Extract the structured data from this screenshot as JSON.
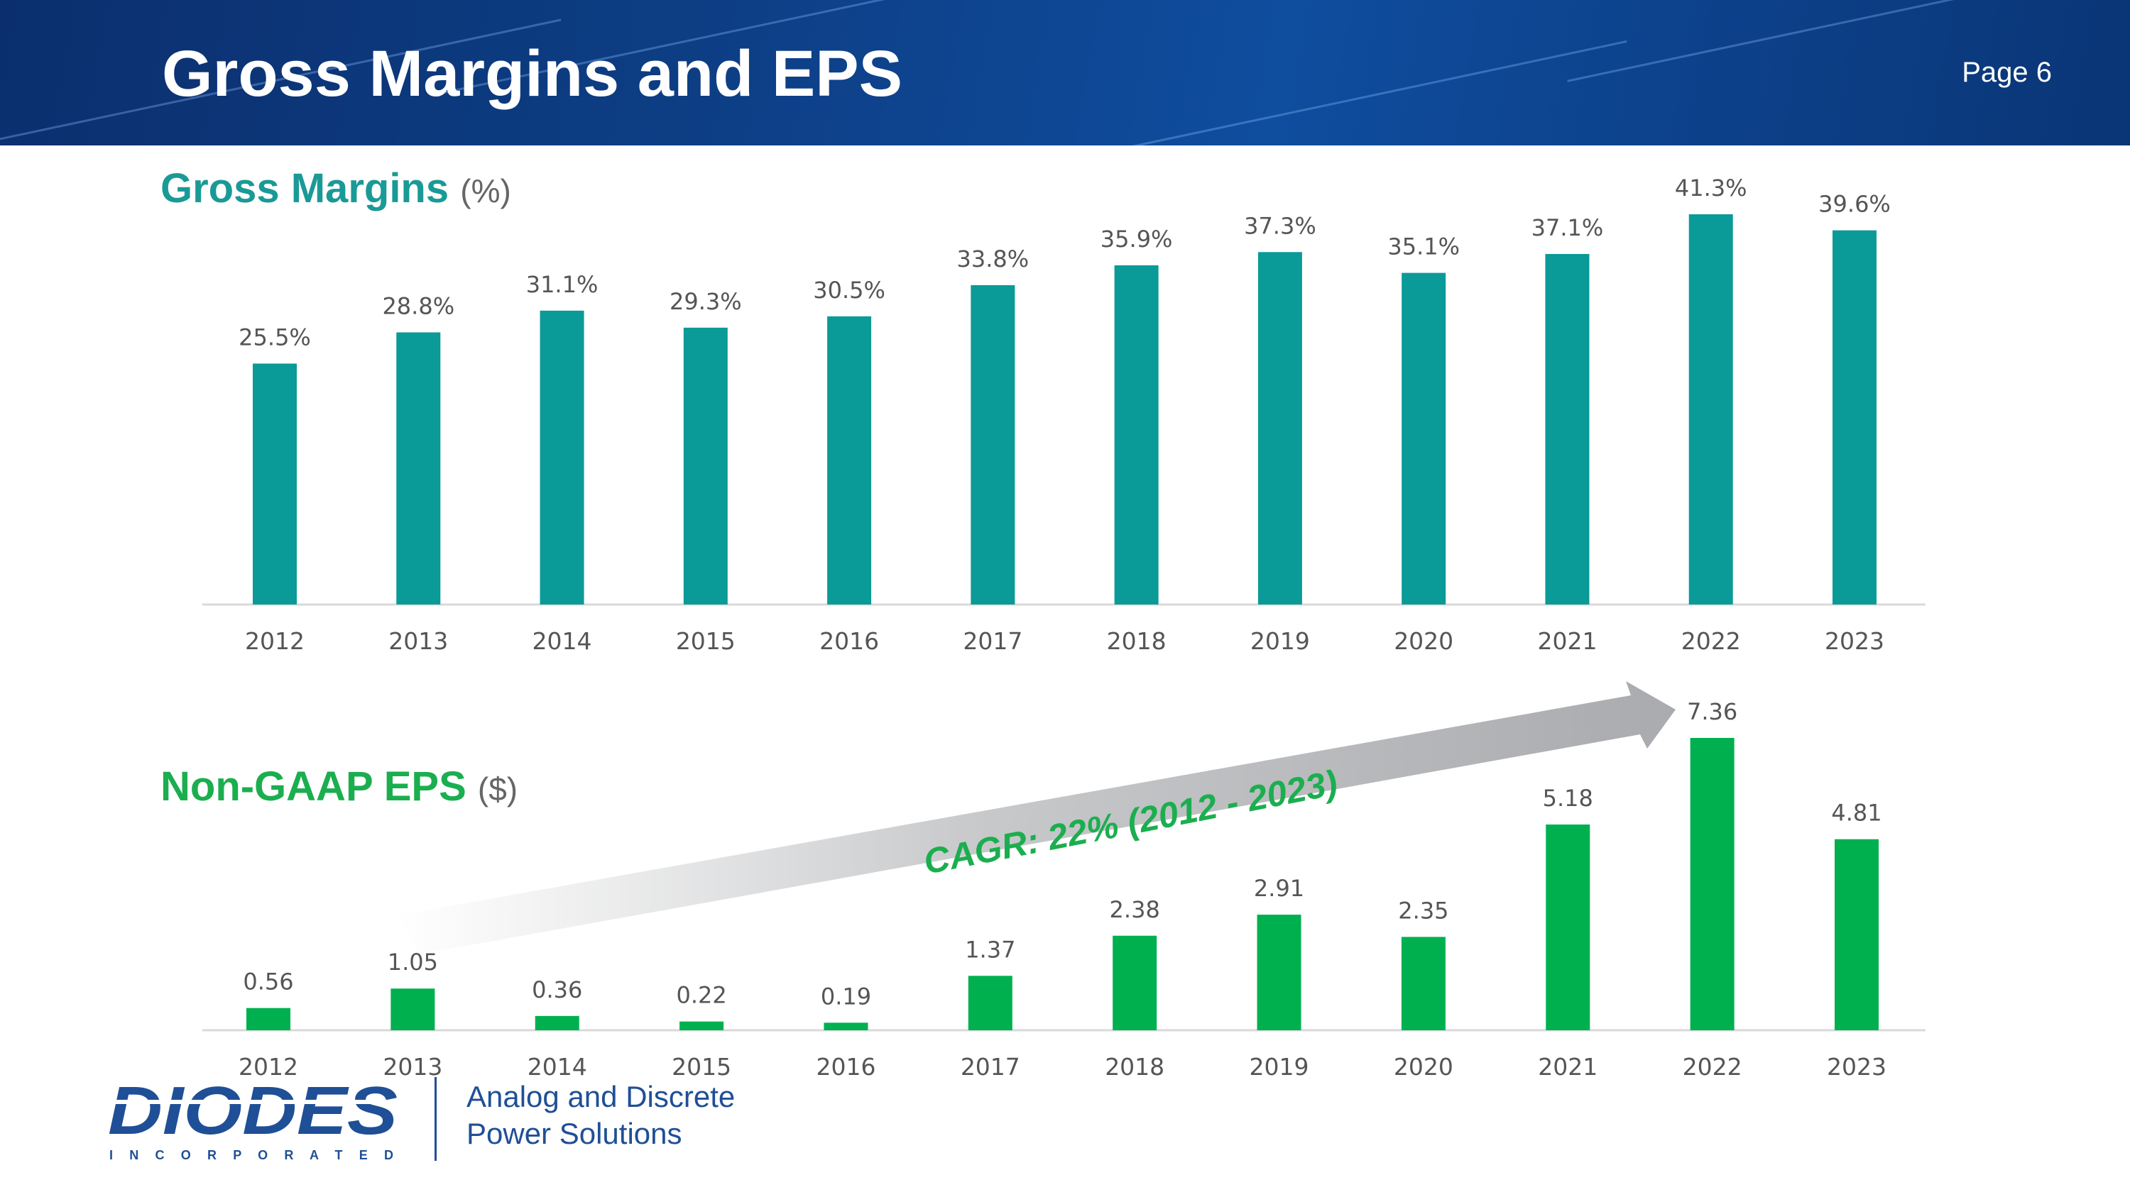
{
  "header": {
    "title": "Gross Margins and EPS",
    "page_label": "Page 6"
  },
  "gross_margins": {
    "title": "Gross Margins",
    "unit": "(%)"
  },
  "eps": {
    "title": "Non-GAAP EPS",
    "unit": "($)"
  },
  "cagr_label": "CAGR: 22% (2012 - 2023)",
  "logo": {
    "wordmark": "DIODES",
    "sub": "I N C O R P O R A T E D"
  },
  "tagline": {
    "line1": "Analog and Discrete",
    "line2": "Power Solutions"
  },
  "colors": {
    "teal": "#0a9a97",
    "green": "#00b04f",
    "header": "#0d3f86",
    "brand_blue": "#1f4f96"
  },
  "chart_data": [
    {
      "type": "bar",
      "title": "Gross Margins (%)",
      "categories": [
        "2012",
        "2013",
        "2014",
        "2015",
        "2016",
        "2017",
        "2018",
        "2019",
        "2020",
        "2021",
        "2022",
        "2023"
      ],
      "values": [
        25.5,
        28.8,
        31.1,
        29.3,
        30.5,
        33.8,
        35.9,
        37.3,
        35.1,
        37.1,
        41.3,
        39.6
      ],
      "labels": [
        "25.5%",
        "28.8%",
        "31.1%",
        "29.3%",
        "30.5%",
        "33.8%",
        "35.9%",
        "37.3%",
        "35.1%",
        "37.1%",
        "41.3%",
        "39.6%"
      ],
      "ylim": [
        0,
        41.3
      ],
      "grid": false
    },
    {
      "type": "bar",
      "title": "Non-GAAP EPS ($)",
      "categories": [
        "2012",
        "2013",
        "2014",
        "2015",
        "2016",
        "2017",
        "2018",
        "2019",
        "2020",
        "2021",
        "2022",
        "2023"
      ],
      "values": [
        0.56,
        1.05,
        0.36,
        0.22,
        0.19,
        1.37,
        2.38,
        2.91,
        2.35,
        5.18,
        7.36,
        4.81
      ],
      "labels": [
        "0.56",
        "1.05",
        "0.36",
        "0.22",
        "0.19",
        "1.37",
        "2.38",
        "2.91",
        "2.35",
        "5.18",
        "7.36",
        "4.81"
      ],
      "ylim": [
        0,
        7.36
      ],
      "grid": false
    }
  ]
}
